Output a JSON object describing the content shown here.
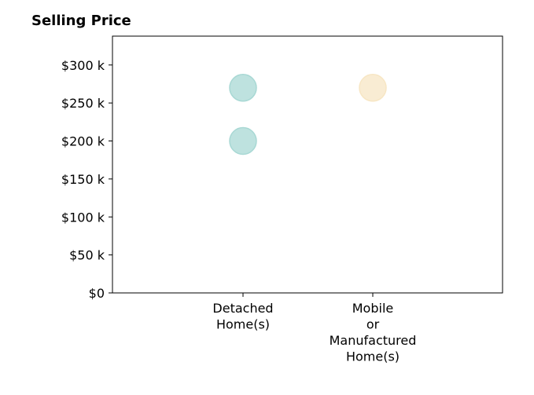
{
  "chart_data": {
    "type": "scatter",
    "title": "Selling Price",
    "categories": [
      "Detached\nHome(s)",
      "Mobile\nor\nManufactured\nHome(s)"
    ],
    "points": [
      {
        "category": "Detached\nHome(s)",
        "value": 270000,
        "color": "#a8d8d4"
      },
      {
        "category": "Detached\nHome(s)",
        "value": 200000,
        "color": "#a8d8d4"
      },
      {
        "category": "Mobile\nor\nManufactured\nHome(s)",
        "value": 270000,
        "color": "#f7e6c4"
      }
    ],
    "yticks": [
      {
        "value": 0,
        "label": "$0"
      },
      {
        "value": 50000,
        "label": "$50 k"
      },
      {
        "value": 100000,
        "label": "$100 k"
      },
      {
        "value": 150000,
        "label": "$150 k"
      },
      {
        "value": 200000,
        "label": "$200 k"
      },
      {
        "value": 250000,
        "label": "$250 k"
      },
      {
        "value": 300000,
        "label": "$300 k"
      }
    ],
    "ylim": [
      0,
      338000
    ],
    "grid": false,
    "colors": {
      "detached": "#a8d8d4",
      "mobile": "#f7e6c4",
      "axis": "#000000"
    }
  }
}
